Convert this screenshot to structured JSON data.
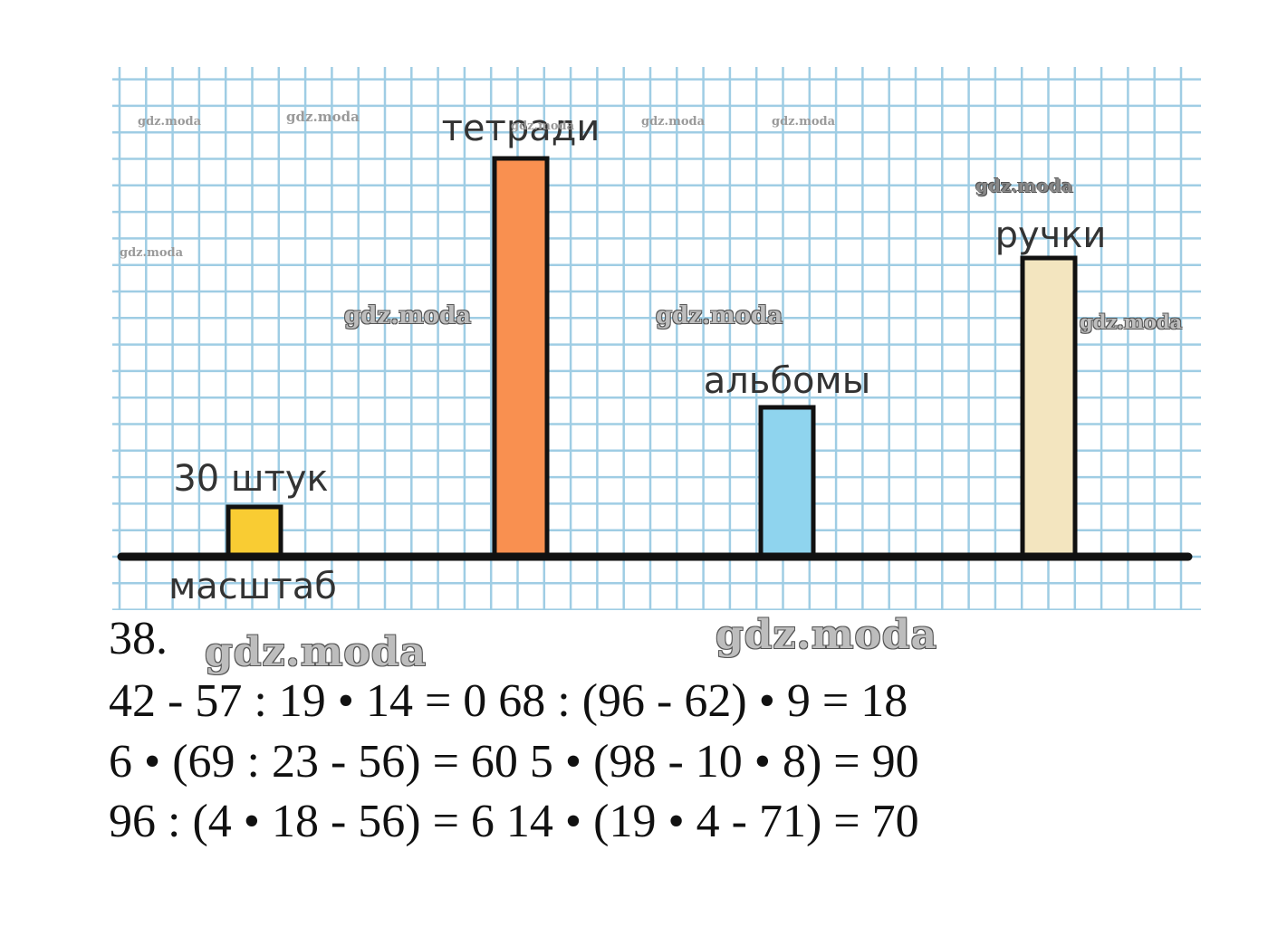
{
  "chart_data": {
    "type": "bar",
    "scale_label": "масштаб",
    "scale_value_label": "30 штук",
    "unit_value": 30,
    "categories": [
      "масштаб",
      "тетради",
      "альбомы",
      "ручки"
    ],
    "values": [
      30,
      240,
      90,
      180
    ],
    "bar_colors": [
      "#f9cc33",
      "#f99050",
      "#8fd4ee",
      "#f3e5bf"
    ],
    "grid": true,
    "grid_color": "#9fcde4"
  },
  "watermark": "gdz.moda",
  "task": {
    "number": "38.",
    "lines": [
      "42 - 57 : 19 • 14 = 0 68 : (96 - 62) • 9 = 18",
      "6 • (69 : 23 - 56) = 60 5 • (98 - 10 • 8) = 90",
      "96 : (4 • 18 - 56) = 6 14 • (19 • 4 - 71) = 70"
    ]
  }
}
